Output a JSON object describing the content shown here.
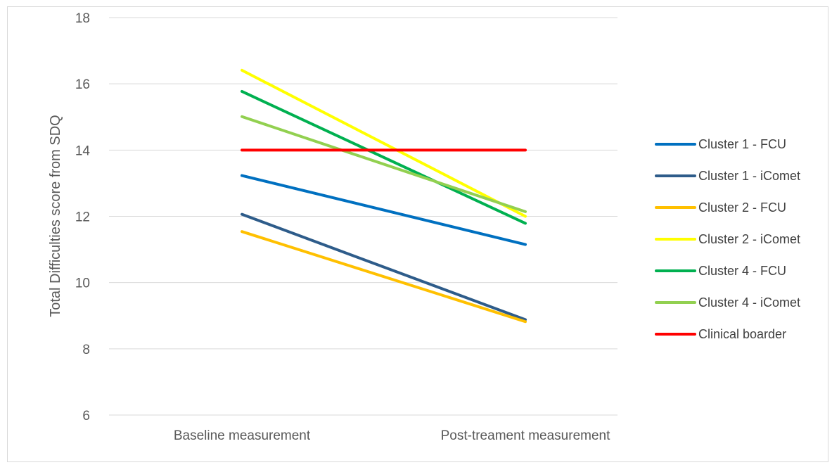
{
  "chart_data": {
    "type": "line",
    "title": "",
    "xlabel": "",
    "ylabel": "Total Difficulties score from SDQ",
    "categories": [
      "Baseline measurement",
      "Post-treament measurement"
    ],
    "ylim": [
      6,
      18
    ],
    "yticks": [
      6,
      8,
      10,
      12,
      14,
      16,
      18
    ],
    "grid": true,
    "legend_position": "right",
    "series": [
      {
        "name": "Cluster 1 - FCU",
        "values": [
          13.23,
          11.15
        ],
        "color": "#0070C0"
      },
      {
        "name": "Cluster 1 - iComet",
        "values": [
          12.06,
          8.88
        ],
        "color": "#2E5C8A"
      },
      {
        "name": "Cluster 2 - FCU",
        "values": [
          11.54,
          8.82
        ],
        "color": "#FFC000"
      },
      {
        "name": "Cluster 2 - iComet",
        "values": [
          16.41,
          12.0
        ],
        "color": "#FFFF00"
      },
      {
        "name": "Cluster 4 - FCU",
        "values": [
          15.77,
          11.79
        ],
        "color": "#00B050"
      },
      {
        "name": "Cluster 4 - iComet",
        "values": [
          15.01,
          12.14
        ],
        "color": "#92D050"
      },
      {
        "name": "Clinical boarder",
        "values": [
          14.0,
          14.0
        ],
        "color": "#FF0000"
      }
    ]
  }
}
